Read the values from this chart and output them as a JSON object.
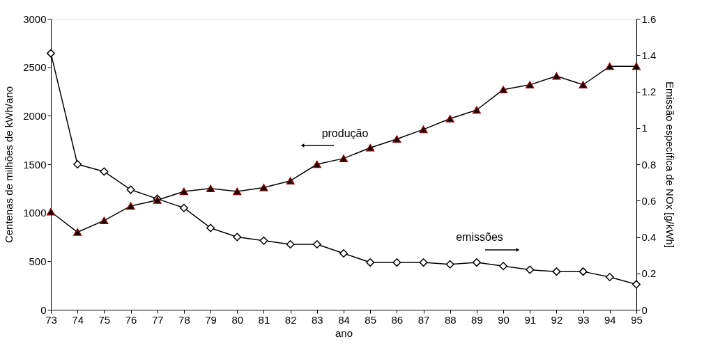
{
  "chart_data": {
    "type": "line",
    "xlabel": "ano",
    "ylabel": "Centenas de milhões de kWh/ano",
    "y2label": "Emissão específica de NOx  [g/kWh]",
    "x": [
      73,
      74,
      75,
      76,
      77,
      78,
      79,
      80,
      81,
      82,
      83,
      84,
      85,
      86,
      87,
      88,
      89,
      90,
      91,
      92,
      93,
      94,
      95
    ],
    "xlim": [
      73,
      95
    ],
    "xticks": [
      73,
      74,
      75,
      76,
      77,
      78,
      79,
      80,
      81,
      82,
      83,
      84,
      85,
      86,
      87,
      88,
      89,
      90,
      91,
      92,
      93,
      94,
      95
    ],
    "ylim": [
      0,
      3000
    ],
    "yticks": [
      0,
      500,
      1000,
      1500,
      2000,
      2500,
      3000
    ],
    "y2lim": [
      0,
      1.6
    ],
    "y2ticks": [
      0,
      0.2,
      0.4,
      0.6,
      0.8,
      1,
      1.2,
      1.4,
      1.6
    ],
    "grid": false,
    "line_style": "solid",
    "series": [
      {
        "color": "#000000",
        "marker": "triangle",
        "values": [
          1010,
          800,
          920,
          1070,
          1130,
          1220,
          1250,
          1220,
          1260,
          1330,
          1500,
          1560,
          1670,
          1760,
          1860,
          1970,
          2060,
          2270,
          2320,
          2410,
          2320,
          2510,
          2510
        ]
      },
      {
        "color": "#000000",
        "marker": "diamond",
        "axis": "y2",
        "values": [
          1.41,
          0.8,
          0.76,
          0.66,
          0.61,
          0.56,
          0.45,
          0.4,
          0.38,
          0.36,
          0.36,
          0.31,
          0.26,
          0.26,
          0.26,
          0.25,
          0.26,
          0.24,
          0.22,
          0.21,
          0.21,
          0.18,
          0.14
        ]
      }
    ],
    "annotations": [
      "produção",
      "emissões"
    ]
  }
}
